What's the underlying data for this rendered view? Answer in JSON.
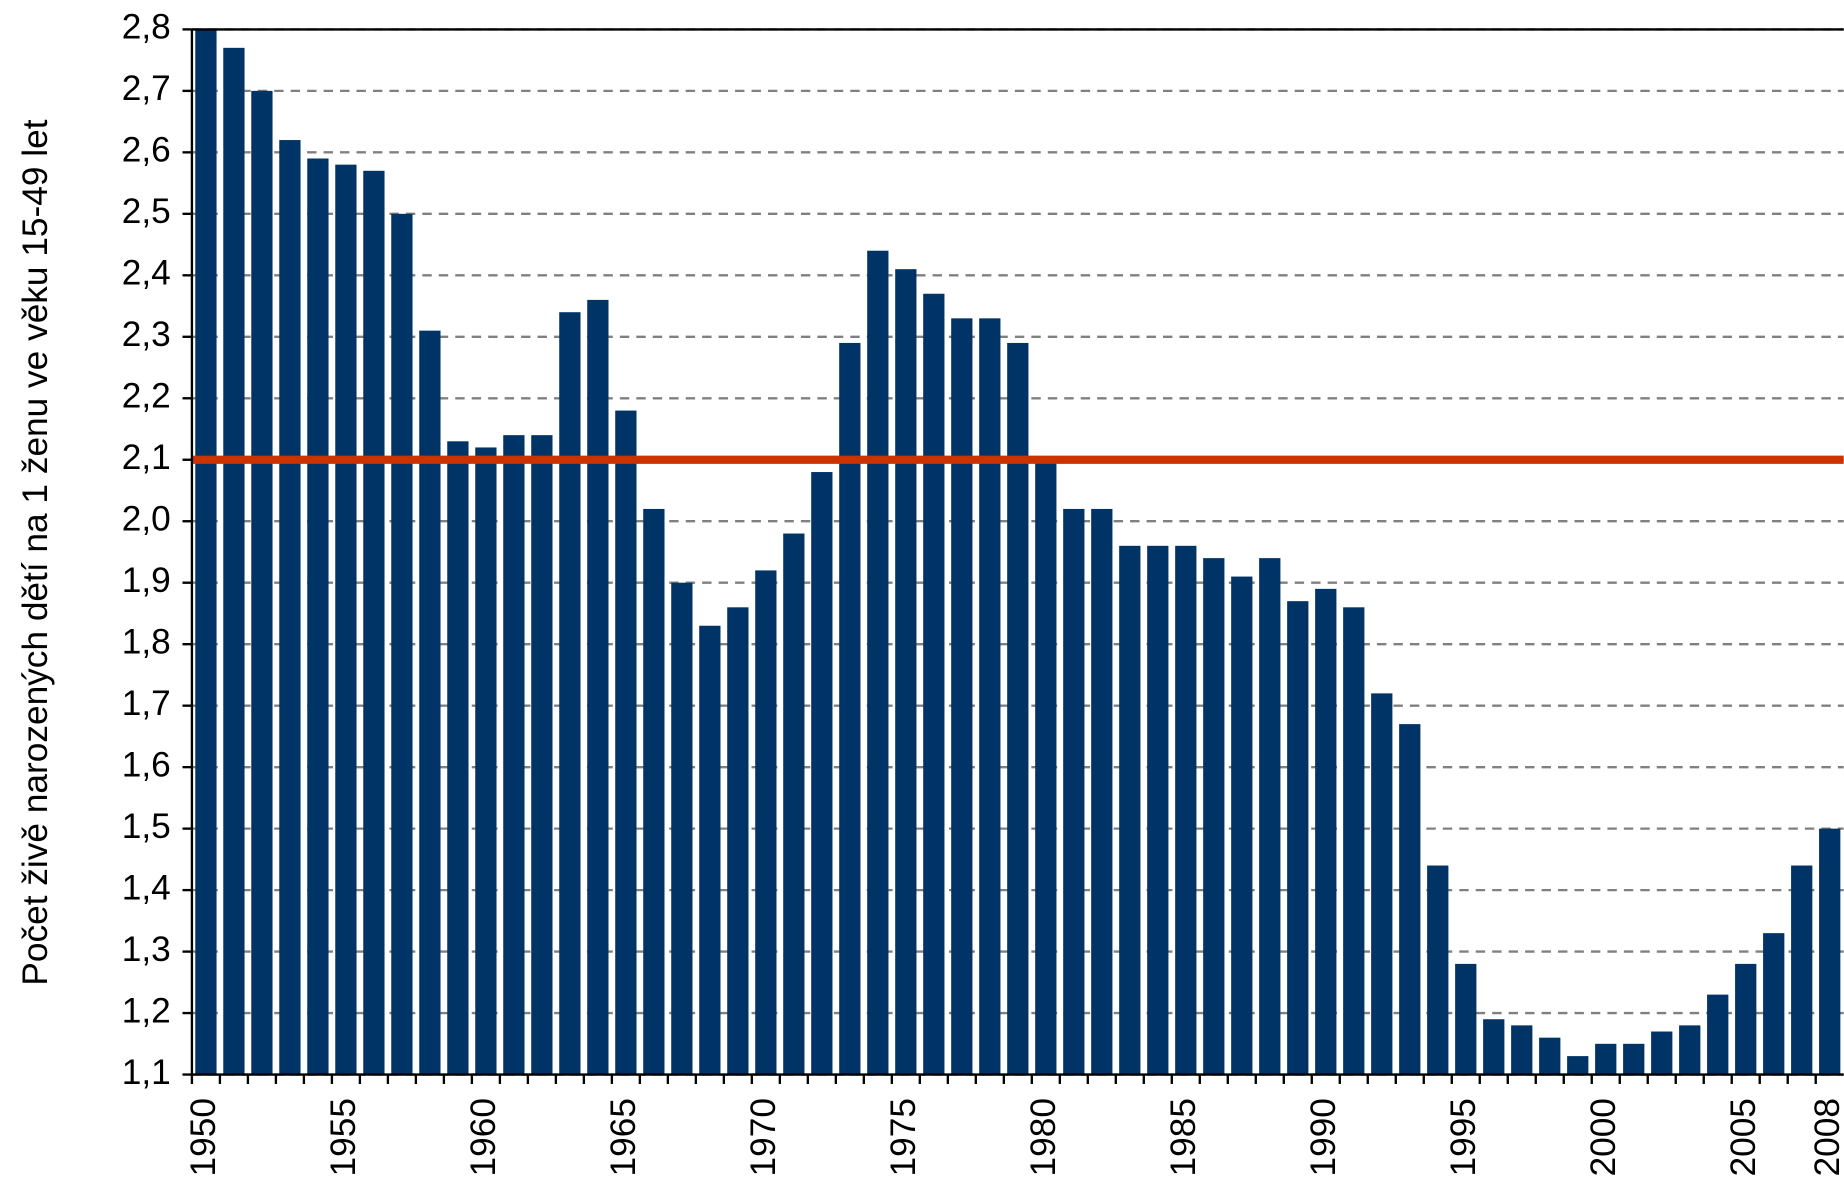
{
  "chart_data": {
    "type": "bar",
    "y_axis_label": "Počet živě narozených dětí na 1 ženu ve věku 15-49 let",
    "categories": [
      "1950",
      null,
      null,
      null,
      null,
      "1955",
      null,
      null,
      null,
      null,
      "1960",
      null,
      null,
      null,
      null,
      "1965",
      null,
      null,
      null,
      null,
      "1970",
      null,
      null,
      null,
      null,
      "1975",
      null,
      null,
      null,
      null,
      "1980",
      null,
      null,
      null,
      null,
      "1985",
      null,
      null,
      null,
      null,
      "1990",
      null,
      null,
      null,
      null,
      "1995",
      null,
      null,
      null,
      null,
      "2000",
      null,
      null,
      null,
      null,
      "2005",
      null,
      null,
      "2008"
    ],
    "values": [
      2.8,
      2.77,
      2.7,
      2.62,
      2.59,
      2.58,
      2.57,
      2.5,
      2.31,
      2.13,
      2.12,
      2.14,
      2.14,
      2.34,
      2.36,
      2.18,
      2.02,
      1.9,
      1.83,
      1.86,
      1.92,
      1.98,
      2.08,
      2.29,
      2.44,
      2.41,
      2.37,
      2.33,
      2.33,
      2.29,
      2.1,
      2.02,
      2.02,
      1.96,
      1.96,
      1.96,
      1.94,
      1.91,
      1.94,
      1.87,
      1.89,
      1.86,
      1.72,
      1.67,
      1.44,
      1.28,
      1.19,
      1.18,
      1.16,
      1.13,
      1.15,
      1.15,
      1.17,
      1.18,
      1.23,
      1.28,
      1.33,
      1.44,
      1.5
    ],
    "color": "#003366",
    "ylim": [
      1.1,
      2.8
    ],
    "yticks": [
      {
        "value": 1.1,
        "label": "1,1"
      },
      {
        "value": 1.2,
        "label": "1,2"
      },
      {
        "value": 1.3,
        "label": "1,3"
      },
      {
        "value": 1.4,
        "label": "1,4"
      },
      {
        "value": 1.5,
        "label": "1,5"
      },
      {
        "value": 1.6,
        "label": "1,6"
      },
      {
        "value": 1.7,
        "label": "1,7"
      },
      {
        "value": 1.8,
        "label": "1,8"
      },
      {
        "value": 1.9,
        "label": "1,9"
      },
      {
        "value": 2.0,
        "label": "2,0"
      },
      {
        "value": 2.1,
        "label": "2,1"
      },
      {
        "value": 2.2,
        "label": "2,2"
      },
      {
        "value": 2.3,
        "label": "2,3"
      },
      {
        "value": 2.4,
        "label": "2,4"
      },
      {
        "value": 2.5,
        "label": "2,5"
      },
      {
        "value": 2.6,
        "label": "2,6"
      },
      {
        "value": 2.7,
        "label": "2,7"
      },
      {
        "value": 2.8,
        "label": "2,8"
      }
    ],
    "grid": true,
    "reference_line": {
      "value": 2.1,
      "color": "#cc3300"
    }
  }
}
